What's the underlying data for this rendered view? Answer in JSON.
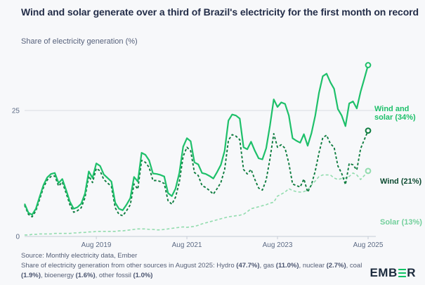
{
  "header": {
    "title": "Wind and solar generate over a third of Brazil's electricity for the first month on record",
    "subtitle": "Share of electricity generation (%)"
  },
  "chart_data": {
    "type": "line",
    "title": "Wind and solar generate over a third of Brazil's electricity for the first month on record",
    "ylabel": "Share of electricity generation (%)",
    "x_unit": "month",
    "x_start": "Jan 2018",
    "x_end": "Aug 2025",
    "ylim": [
      0,
      38
    ],
    "y_gridlines": [
      {
        "value": 25,
        "label": "25"
      },
      {
        "value": 0,
        "label": "0"
      }
    ],
    "x_ticks": [
      {
        "index": 19,
        "label": "Aug 2019"
      },
      {
        "index": 43,
        "label": "Aug 2021"
      },
      {
        "index": 67,
        "label": "Aug 2023"
      },
      {
        "index": 91,
        "label": "Aug 2025"
      }
    ],
    "legend_position": "right-of-line-ends",
    "grid": "horizontal-only",
    "series": [
      {
        "name": "Solar",
        "label": "Solar (13%)",
        "color": "#92dcae",
        "label_color": "#72cf9b",
        "style": "dashed",
        "end_value": 13,
        "values": [
          0.3,
          0.3,
          0.4,
          0.4,
          0.5,
          0.5,
          0.5,
          0.5,
          0.6,
          0.6,
          0.6,
          0.6,
          0.6,
          0.7,
          0.7,
          0.8,
          0.8,
          0.9,
          0.9,
          1.0,
          1.0,
          1.0,
          1.0,
          1.0,
          1.0,
          1.1,
          1.1,
          1.2,
          1.3,
          1.4,
          1.5,
          1.5,
          1.5,
          1.4,
          1.4,
          1.3,
          1.3,
          1.4,
          1.5,
          1.6,
          1.7,
          1.8,
          1.9,
          1.8,
          1.9,
          2.0,
          2.2,
          2.5,
          2.7,
          2.9,
          3.1,
          3.3,
          3.5,
          3.7,
          3.9,
          4.0,
          4.1,
          4.2,
          4.4,
          4.9,
          5.5,
          5.7,
          5.9,
          6.1,
          6.3,
          6.6,
          6.8,
          8.0,
          8.4,
          8.8,
          9.5,
          9.1,
          8.9,
          8.8,
          8.9,
          9.2,
          10.2,
          11.0,
          11.9,
          12.2,
          12.2,
          12.2,
          11.6,
          11.3,
          11.5,
          11.6,
          11.9,
          12.6,
          12.2,
          11.3,
          12.1,
          13.0
        ]
      },
      {
        "name": "Wind",
        "label": "Wind (21%)",
        "color": "#0e7c3f",
        "label_color": "#0c4a30",
        "style": "dashed",
        "end_value": 21,
        "values": [
          6.2,
          4.4,
          3.9,
          5.1,
          7.4,
          9.7,
          11.2,
          11.9,
          12.0,
          10.0,
          10.8,
          8.6,
          6.3,
          4.8,
          5.1,
          5.7,
          7.7,
          12.0,
          10.7,
          13.5,
          13.0,
          11.3,
          10.6,
          9.9,
          5.7,
          4.4,
          4.1,
          5.1,
          6.3,
          10.4,
          9.4,
          15.1,
          14.7,
          13.7,
          11.1,
          11.1,
          10.9,
          10.5,
          7.1,
          6.4,
          7.8,
          10.8,
          15.9,
          17.7,
          17.0,
          12.7,
          12.1,
          10.1,
          9.7,
          9.1,
          8.4,
          9.5,
          10.7,
          13.3,
          19.1,
          20.2,
          19.9,
          19.2,
          13.3,
          12.4,
          13.3,
          11.3,
          9.6,
          9.2,
          11.2,
          15.4,
          20.4,
          17.7,
          18.2,
          17.5,
          14.5,
          10.4,
          10.1,
          9.8,
          11.4,
          8.8,
          10.3,
          13.0,
          16.6,
          19.6,
          20.1,
          18.4,
          17.7,
          14.0,
          12.5,
          10.3,
          14.5,
          14.2,
          13.2,
          17.4,
          19.2,
          21.0
        ]
      },
      {
        "name": "Wind and solar",
        "label": "Wind and solar (34%)",
        "color": "#1ec06a",
        "label_color": "#1ec06a",
        "style": "solid",
        "end_value": 34,
        "values": [
          6.5,
          4.7,
          4.3,
          5.5,
          7.9,
          10.2,
          11.7,
          12.4,
          12.6,
          10.6,
          11.4,
          9.2,
          6.9,
          5.5,
          5.8,
          6.5,
          8.5,
          12.9,
          11.6,
          14.5,
          14.0,
          12.3,
          11.6,
          10.9,
          6.7,
          5.5,
          5.2,
          6.3,
          7.6,
          11.8,
          10.9,
          16.6,
          16.2,
          15.1,
          12.5,
          12.4,
          12.2,
          11.9,
          8.6,
          8.0,
          9.5,
          12.6,
          17.8,
          19.5,
          18.9,
          14.7,
          14.3,
          12.6,
          12.4,
          12.0,
          11.5,
          12.8,
          14.2,
          17.0,
          23.0,
          24.2,
          24.0,
          23.4,
          17.7,
          17.3,
          18.8,
          17.0,
          15.5,
          15.3,
          17.5,
          22.0,
          27.2,
          25.7,
          26.6,
          26.3,
          24.0,
          19.5,
          19.0,
          18.6,
          20.3,
          18.0,
          20.5,
          24.0,
          28.5,
          31.8,
          32.3,
          30.6,
          29.3,
          25.3,
          24.0,
          21.9,
          26.4,
          26.8,
          25.4,
          28.7,
          31.3,
          34.0
        ]
      }
    ],
    "colors": {
      "background": "#f7f8fa",
      "gridline": "#d8dbe3",
      "axis": "#c6ccd6",
      "tick_text": "#5d6b85"
    }
  },
  "footer": {
    "source_line": "Source: Monthly electricity data, Ember",
    "note_segments": [
      {
        "text": "Share of electricity generation from other sources in August 2025: Hydro ",
        "bold": false
      },
      {
        "text": "(47.7%)",
        "bold": true
      },
      {
        "text": ", gas ",
        "bold": false
      },
      {
        "text": "(11.0%)",
        "bold": true
      },
      {
        "text": ", nuclear ",
        "bold": false
      },
      {
        "text": "(2.7%)",
        "bold": true
      },
      {
        "text": ", coal ",
        "bold": false
      },
      {
        "text": "(1.9%)",
        "bold": true
      },
      {
        "text": ", bioenergy ",
        "bold": false
      },
      {
        "text": "(1.6%)",
        "bold": true
      },
      {
        "text": ", other fossil ",
        "bold": false
      },
      {
        "text": "(1.0%)",
        "bold": true
      }
    ],
    "logo": {
      "prefix": "EMB",
      "suffix": "R",
      "bar_color": "#10c465"
    }
  }
}
